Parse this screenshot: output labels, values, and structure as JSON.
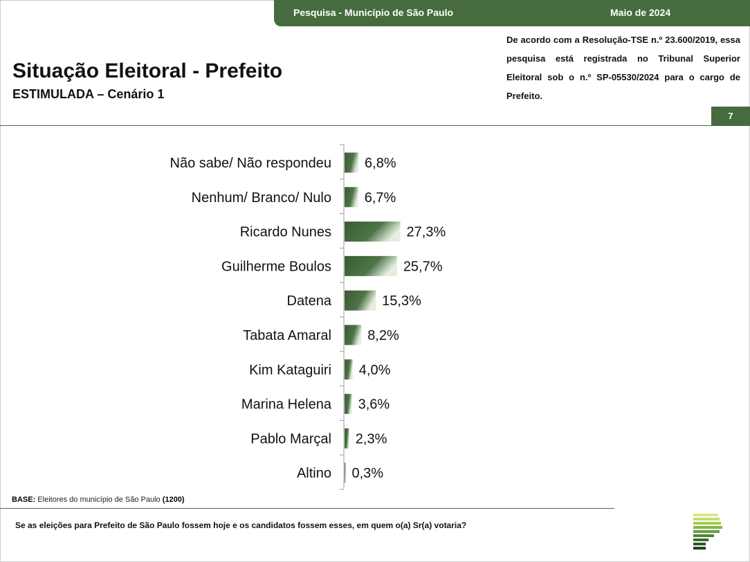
{
  "header": {
    "survey_label": "Pesquisa - Município de São Paulo",
    "date_label": "Maio de 2024",
    "title": "Situação Eleitoral - Prefeito",
    "subtitle": "ESTIMULADA – Cenário 1",
    "tse_note": "De acordo com a Resolução-TSE n.º 23.600/2019, essa pesquisa está registrada no Tribunal Superior Eleitoral sob o n.º SP-05530/2024 para o cargo de Prefeito.",
    "page_number": "7"
  },
  "footer": {
    "base_label": "BASE:",
    "base_text": "Eleitores do município de São Paulo",
    "base_count": "(1200)",
    "question": "Se as eleições para Prefeito de São Paulo fossem hoje e os candidatos fossem esses, em quem o(a) Sr(a) votaria?"
  },
  "colors": {
    "brand_green": "#456b3f",
    "bar_dark": "#3a5a33",
    "bar_light": "#e4eee0"
  },
  "chart_data": {
    "type": "bar",
    "orientation": "horizontal",
    "title": "",
    "xlabel": "",
    "ylabel": "",
    "grid": false,
    "legend": "none",
    "categories": [
      "Não sabe/ Não respondeu",
      "Nenhum/ Branco/ Nulo",
      "Ricardo Nunes",
      "Guilherme Boulos",
      "Datena",
      "Tabata Amaral",
      "Kim Kataguiri",
      "Marina Helena",
      "Pablo Marçal",
      "Altino"
    ],
    "values": [
      6.8,
      6.7,
      27.3,
      25.7,
      15.3,
      8.2,
      4.0,
      3.6,
      2.3,
      0.3
    ],
    "value_labels": [
      "6,8%",
      "6,7%",
      "27,3%",
      "25,7%",
      "15,3%",
      "8,2%",
      "4,0%",
      "3,6%",
      "2,3%",
      "0,3%"
    ],
    "unit": "%",
    "xlim": [
      0,
      100
    ]
  }
}
